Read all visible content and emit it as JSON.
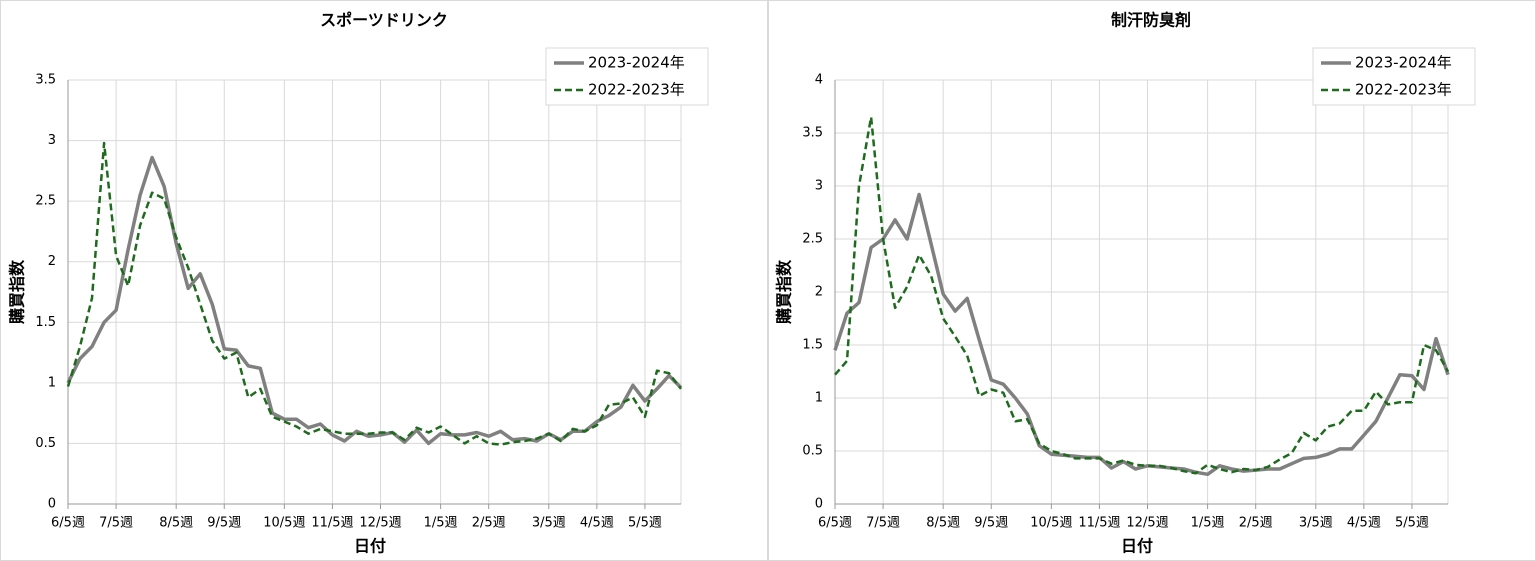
{
  "chart_data": [
    {
      "type": "line",
      "title": "スポーツドリンク",
      "x_label": "日付",
      "y_label": "購買指数",
      "categories": [
        "6/5週",
        null,
        null,
        null,
        "7/5週",
        null,
        null,
        null,
        null,
        "8/5週",
        null,
        null,
        null,
        "9/5週",
        null,
        null,
        null,
        null,
        "10/5週",
        null,
        null,
        null,
        "11/5週",
        null,
        null,
        null,
        "12/5週",
        null,
        null,
        null,
        null,
        "1/5週",
        null,
        null,
        null,
        "2/5週",
        null,
        null,
        null,
        null,
        "3/5週",
        null,
        null,
        null,
        "4/5週",
        null,
        null,
        null,
        "5/5週",
        null,
        null,
        null
      ],
      "series": [
        {
          "name": "2023-2024年",
          "color": "#808080",
          "values": [
            1.0,
            1.2,
            1.3,
            1.5,
            1.6,
            2.1,
            2.55,
            2.86,
            2.62,
            2.15,
            1.78,
            1.9,
            1.65,
            1.28,
            1.27,
            1.14,
            1.12,
            0.75,
            0.7,
            0.7,
            0.63,
            0.66,
            0.57,
            0.52,
            0.6,
            0.56,
            0.57,
            0.59,
            0.51,
            0.61,
            0.5,
            0.58,
            0.57,
            0.57,
            0.59,
            0.56,
            0.6,
            0.53,
            0.54,
            0.52,
            0.58,
            0.53,
            0.6,
            0.6,
            0.68,
            0.73,
            0.8,
            0.98,
            0.85,
            0.95,
            1.06,
            0.96
          ]
        },
        {
          "name": "2022-2023年",
          "color": "#1e6b1e",
          "dashed": true,
          "values": [
            0.97,
            1.3,
            1.7,
            2.98,
            2.05,
            1.8,
            2.3,
            2.57,
            2.52,
            2.2,
            1.95,
            1.65,
            1.35,
            1.2,
            1.25,
            0.88,
            0.95,
            0.72,
            0.68,
            0.64,
            0.58,
            0.62,
            0.6,
            0.58,
            0.58,
            0.58,
            0.59,
            0.59,
            0.53,
            0.63,
            0.59,
            0.64,
            0.57,
            0.5,
            0.56,
            0.5,
            0.49,
            0.51,
            0.52,
            0.54,
            0.58,
            0.52,
            0.62,
            0.6,
            0.65,
            0.82,
            0.83,
            0.88,
            0.72,
            1.1,
            1.08,
            0.95
          ]
        }
      ],
      "ylim": [
        0,
        3.5
      ],
      "yticks": [
        0,
        0.5,
        1,
        1.5,
        2,
        2.5,
        3,
        3.5
      ],
      "grid": true,
      "legend": "top-right"
    },
    {
      "type": "line",
      "title": "制汗防臭剤",
      "x_label": "日付",
      "y_label": "購買指数",
      "categories": [
        "6/5週",
        null,
        null,
        null,
        "7/5週",
        null,
        null,
        null,
        null,
        "8/5週",
        null,
        null,
        null,
        "9/5週",
        null,
        null,
        null,
        null,
        "10/5週",
        null,
        null,
        null,
        "11/5週",
        null,
        null,
        null,
        "12/5週",
        null,
        null,
        null,
        null,
        "1/5週",
        null,
        null,
        null,
        "2/5週",
        null,
        null,
        null,
        null,
        "3/5週",
        null,
        null,
        null,
        "4/5週",
        null,
        null,
        null,
        "5/5週",
        null,
        null,
        null
      ],
      "series": [
        {
          "name": "2023-2024年",
          "color": "#808080",
          "values": [
            1.45,
            1.8,
            1.9,
            2.42,
            2.5,
            2.68,
            2.5,
            2.92,
            2.45,
            1.98,
            1.82,
            1.94,
            1.55,
            1.17,
            1.13,
            1.0,
            0.85,
            0.55,
            0.47,
            0.46,
            0.45,
            0.44,
            0.44,
            0.34,
            0.4,
            0.33,
            0.36,
            0.35,
            0.34,
            0.33,
            0.3,
            0.28,
            0.36,
            0.33,
            0.31,
            0.32,
            0.33,
            0.33,
            0.38,
            0.43,
            0.44,
            0.47,
            0.52,
            0.52,
            0.65,
            0.78,
            1.0,
            1.22,
            1.21,
            1.08,
            1.56,
            1.22
          ]
        },
        {
          "name": "2022-2023年",
          "color": "#1e6b1e",
          "dashed": true,
          "values": [
            1.22,
            1.35,
            3.0,
            3.65,
            2.5,
            1.85,
            2.05,
            2.35,
            2.15,
            1.75,
            1.58,
            1.4,
            1.02,
            1.08,
            1.05,
            0.78,
            0.8,
            0.57,
            0.5,
            0.47,
            0.43,
            0.43,
            0.43,
            0.38,
            0.41,
            0.37,
            0.36,
            0.36,
            0.34,
            0.31,
            0.29,
            0.37,
            0.33,
            0.3,
            0.33,
            0.32,
            0.35,
            0.42,
            0.48,
            0.67,
            0.6,
            0.73,
            0.76,
            0.88,
            0.88,
            1.06,
            0.94,
            0.96,
            0.96,
            1.5,
            1.45,
            1.25
          ]
        }
      ],
      "ylim": [
        0,
        4
      ],
      "yticks": [
        0,
        0.5,
        1,
        1.5,
        2,
        2.5,
        3,
        3.5,
        4
      ],
      "grid": true,
      "legend": "top-right"
    }
  ]
}
